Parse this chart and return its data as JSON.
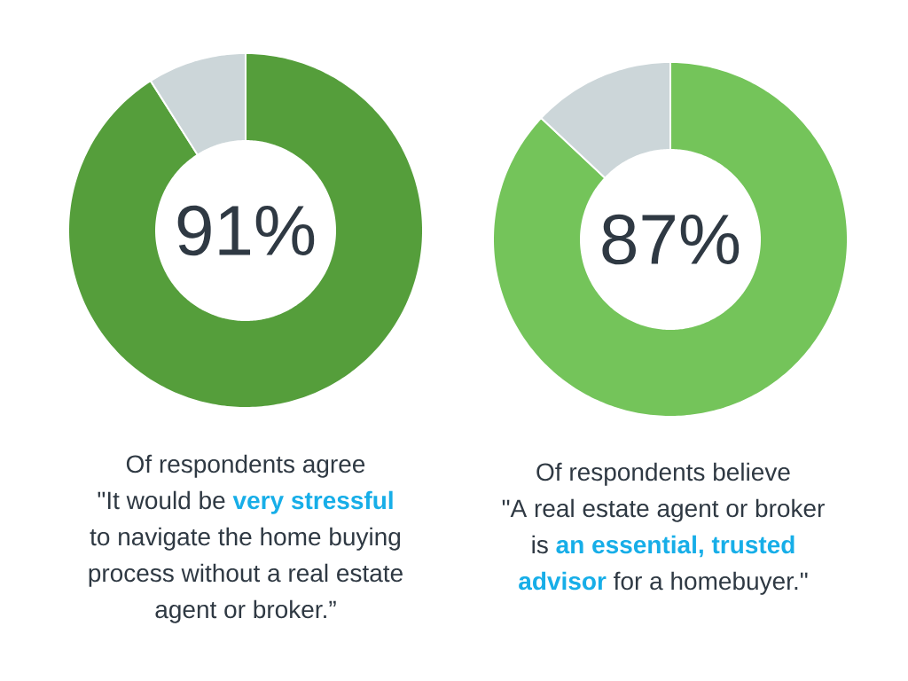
{
  "chart_data": [
    {
      "type": "donut",
      "categories": [
        null,
        null
      ],
      "values": [
        91,
        9
      ],
      "colors": [
        "#559e3b",
        "#ccd6d9"
      ],
      "value_labels": [
        "91%",
        null
      ],
      "annotations": [
        "Of respondents agree",
        "\"It would be **very stressful**",
        "to navigate the home buying",
        "process without a real estate",
        "agent or broker.”"
      ]
    },
    {
      "type": "donut",
      "categories": [
        null,
        null
      ],
      "values": [
        87,
        13
      ],
      "colors": [
        "#74c45a",
        "#ccd6d9"
      ],
      "value_labels": [
        "87%",
        null
      ],
      "annotations": [
        "Of respondents believe",
        "\"A real estate agent or broker",
        "is **an essential, trusted**",
        "**advisor** for a homebuyer.\""
      ]
    }
  ]
}
